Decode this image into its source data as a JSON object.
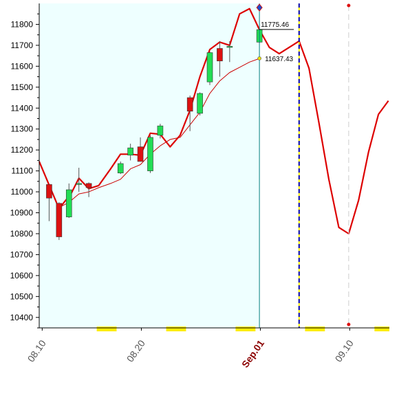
{
  "colors": {
    "plot_background": "#eeffff",
    "up_candle": "#22dd55",
    "down_candle": "#dd1111",
    "forecast_line": "#dd0000",
    "moving_average": "#cc0000",
    "today_line": "#008080",
    "boundary_line": "#0000aa",
    "dash_line": "#cccccc",
    "holiday_marker": "#ffee00"
  },
  "chart_data": {
    "type": "candlestick",
    "title": "",
    "xlabel": "",
    "ylabel": "",
    "ylim": [
      10350,
      11900
    ],
    "yticks": [
      10400,
      10500,
      10600,
      10700,
      10800,
      10900,
      11000,
      11100,
      11200,
      11300,
      11400,
      11500,
      11600,
      11700,
      11800
    ],
    "x_tick_labels": [
      {
        "label": "08.10",
        "day": 0,
        "highlight": false
      },
      {
        "label": "08.20",
        "day": 10,
        "highlight": false
      },
      {
        "label": "Sep.01",
        "day": 22,
        "highlight": true
      },
      {
        "label": "09.10",
        "day": 31,
        "highlight": false
      }
    ],
    "candles": [
      {
        "day": 0.7,
        "open": 11035,
        "high": 11035,
        "low": 10860,
        "close": 10970
      },
      {
        "day": 1.7,
        "open": 10945,
        "high": 10950,
        "low": 10770,
        "close": 10785
      },
      {
        "day": 2.7,
        "open": 10880,
        "high": 11040,
        "low": 10875,
        "close": 11010
      },
      {
        "day": 3.7,
        "open": 11035,
        "high": 11115,
        "low": 11000,
        "close": 11040
      },
      {
        "day": 4.7,
        "open": 11040,
        "high": 11045,
        "low": 10975,
        "close": 11020
      },
      {
        "day": 7.9,
        "open": 11090,
        "high": 11145,
        "low": 11085,
        "close": 11135
      },
      {
        "day": 8.9,
        "open": 11175,
        "high": 11230,
        "low": 11150,
        "close": 11210
      },
      {
        "day": 9.9,
        "open": 11215,
        "high": 11260,
        "low": 11150,
        "close": 11145
      },
      {
        "day": 10.9,
        "open": 11100,
        "high": 11270,
        "low": 11090,
        "close": 11260
      },
      {
        "day": 11.9,
        "open": 11270,
        "high": 11325,
        "low": 11255,
        "close": 11315
      },
      {
        "day": 14.9,
        "open": 11450,
        "high": 11460,
        "low": 11290,
        "close": 11385
      },
      {
        "day": 15.9,
        "open": 11375,
        "high": 11475,
        "low": 11365,
        "close": 11470
      },
      {
        "day": 16.9,
        "open": 11525,
        "high": 11670,
        "low": 11510,
        "close": 11665
      },
      {
        "day": 17.9,
        "open": 11685,
        "high": 11720,
        "low": 11550,
        "close": 11625
      },
      {
        "day": 18.9,
        "open": 11690,
        "high": 11720,
        "low": 11620,
        "close": 11695
      },
      {
        "day": 21.9,
        "open": 11715,
        "high": 11760,
        "low": 11710,
        "close": 11775
      }
    ],
    "series": [
      {
        "role": "forecast",
        "points": [
          [
            -0.3,
            11145
          ],
          [
            1.7,
            10920
          ],
          [
            2.9,
            10990
          ],
          [
            3.7,
            11065
          ],
          [
            4.7,
            11015
          ],
          [
            5.7,
            11030
          ],
          [
            6.9,
            11110
          ],
          [
            7.9,
            11180
          ],
          [
            8.9,
            11180
          ],
          [
            9.9,
            11175
          ],
          [
            10.9,
            11280
          ],
          [
            11.9,
            11275
          ],
          [
            12.9,
            11215
          ],
          [
            13.9,
            11270
          ],
          [
            14.9,
            11390
          ],
          [
            15.9,
            11550
          ],
          [
            16.9,
            11680
          ],
          [
            17.9,
            11715
          ],
          [
            18.9,
            11700
          ],
          [
            19.9,
            11850
          ],
          [
            20.9,
            11875
          ],
          [
            21.9,
            11775
          ],
          [
            22.9,
            11690
          ],
          [
            23.9,
            11660
          ],
          [
            25.9,
            11720
          ],
          [
            26.9,
            11590
          ],
          [
            27.9,
            11330
          ],
          [
            28.9,
            11060
          ],
          [
            29.9,
            10830
          ],
          [
            30.9,
            10800
          ],
          [
            31.9,
            10960
          ],
          [
            32.9,
            11190
          ],
          [
            33.9,
            11370
          ],
          [
            34.9,
            11435
          ]
        ]
      },
      {
        "role": "moving-average",
        "points": [
          [
            1.7,
            10925
          ],
          [
            2.7,
            10950
          ],
          [
            3.7,
            10990
          ],
          [
            4.7,
            11000
          ],
          [
            5.7,
            11020
          ],
          [
            6.9,
            11040
          ],
          [
            7.9,
            11060
          ],
          [
            8.9,
            11110
          ],
          [
            9.9,
            11130
          ],
          [
            10.9,
            11180
          ],
          [
            11.9,
            11220
          ],
          [
            12.9,
            11250
          ],
          [
            13.9,
            11260
          ],
          [
            14.9,
            11320
          ],
          [
            15.9,
            11380
          ],
          [
            16.9,
            11470
          ],
          [
            17.9,
            11530
          ],
          [
            18.9,
            11570
          ],
          [
            19.9,
            11595
          ],
          [
            20.9,
            11620
          ],
          [
            21.9,
            11637
          ]
        ]
      }
    ],
    "value_labels": [
      {
        "text": "11775.46",
        "day": 21.9,
        "value": 11775.46
      },
      {
        "text": "11637.43",
        "day": 21.9,
        "value": 11637.43
      }
    ],
    "markers": {
      "today_day": 21.9,
      "last_trading_day": 25.9,
      "dash_day": 30.9
    },
    "holiday_bands": [
      [
        5.5,
        7.5
      ],
      [
        12.5,
        14.5
      ],
      [
        19.5,
        21.5
      ],
      [
        26.5,
        28.5
      ],
      [
        33.5,
        35
      ]
    ],
    "xlim": [
      -0.3,
      35
    ]
  }
}
